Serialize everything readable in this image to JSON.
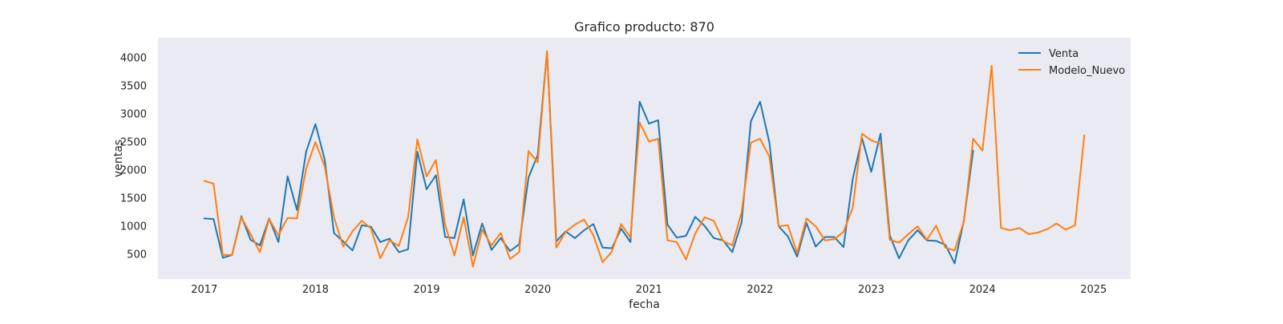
{
  "chart_data": {
    "type": "line",
    "title": "Grafico producto: 870",
    "xlabel": "fecha",
    "ylabel": "ventas",
    "x_start": "2017-01",
    "x_ticks": [
      "2017",
      "2018",
      "2019",
      "2020",
      "2021",
      "2022",
      "2023",
      "2024",
      "2025"
    ],
    "y_ticks": [
      500,
      1000,
      1500,
      2000,
      2500,
      3000,
      3500,
      4000
    ],
    "xlim": [
      "2016-08",
      "2025-05"
    ],
    "ylim": [
      50,
      4350
    ],
    "grid": false,
    "legend_position": "top-right",
    "background": "#eaeaf2",
    "series": [
      {
        "name": "Venta",
        "color": "#1f77b4",
        "values": [
          1130,
          1120,
          430,
          480,
          1170,
          750,
          650,
          1130,
          710,
          1880,
          1280,
          2320,
          2810,
          2180,
          870,
          720,
          560,
          1010,
          980,
          710,
          770,
          530,
          580,
          2320,
          1650,
          1900,
          800,
          780,
          1470,
          470,
          1040,
          570,
          780,
          550,
          670,
          1860,
          2260,
          4100,
          720,
          900,
          780,
          920,
          1030,
          610,
          600,
          950,
          710,
          3210,
          2820,
          2880,
          1020,
          790,
          820,
          1160,
          1000,
          780,
          740,
          530,
          1060,
          2860,
          3210,
          2480,
          990,
          810,
          450,
          1050,
          630,
          800,
          800,
          620,
          1830,
          2560,
          1960,
          2640,
          830,
          420,
          740,
          920,
          740,
          730,
          660,
          330,
          1100,
          2340
        ]
      },
      {
        "name": "Modelo_Nuevo",
        "color": "#ff7f0e",
        "values": [
          1800,
          1750,
          480,
          480,
          1150,
          850,
          530,
          1120,
          830,
          1140,
          1130,
          2020,
          2490,
          2060,
          1150,
          630,
          900,
          1090,
          950,
          420,
          740,
          640,
          1150,
          2540,
          1880,
          2170,
          1020,
          470,
          1150,
          270,
          930,
          650,
          870,
          410,
          530,
          2330,
          2130,
          4110,
          610,
          890,
          1020,
          1110,
          830,
          350,
          540,
          1030,
          790,
          2840,
          2500,
          2550,
          740,
          710,
          400,
          860,
          1150,
          1090,
          730,
          650,
          1240,
          2480,
          2550,
          2230,
          990,
          1010,
          510,
          1130,
          990,
          740,
          760,
          890,
          1320,
          2640,
          2520,
          2460,
          750,
          700,
          850,
          990,
          750,
          1000,
          610,
          560,
          1080,
          2550,
          2340,
          3850,
          960,
          920,
          960,
          850,
          880,
          940,
          1040,
          930,
          1010,
          2610
        ]
      }
    ]
  }
}
